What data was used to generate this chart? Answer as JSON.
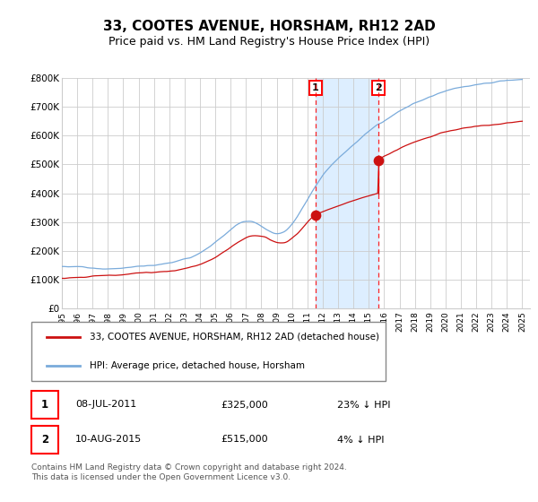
{
  "title": "33, COOTES AVENUE, HORSHAM, RH12 2AD",
  "subtitle": "Price paid vs. HM Land Registry's House Price Index (HPI)",
  "ylim": [
    0,
    800000
  ],
  "yticks": [
    0,
    100000,
    200000,
    300000,
    400000,
    500000,
    600000,
    700000,
    800000
  ],
  "ytick_labels": [
    "£0",
    "£100K",
    "£200K",
    "£300K",
    "£400K",
    "£500K",
    "£600K",
    "£700K",
    "£800K"
  ],
  "start_year": 1995,
  "end_year": 2025,
  "hpi_color": "#7aabdb",
  "price_color": "#cc1111",
  "bg_color": "#ffffff",
  "grid_color": "#cccccc",
  "sale1_year": 2011.52,
  "sale1_price": 325000,
  "sale2_year": 2015.61,
  "sale2_price": 515000,
  "sale1_label": "08-JUL-2011",
  "sale2_label": "10-AUG-2015",
  "sale1_pct": "23% ↓ HPI",
  "sale2_pct": "4% ↓ HPI",
  "legend1": "33, COOTES AVENUE, HORSHAM, RH12 2AD (detached house)",
  "legend2": "HPI: Average price, detached house, Horsham",
  "footer": "Contains HM Land Registry data © Crown copyright and database right 2024.\nThis data is licensed under the Open Government Licence v3.0.",
  "highlight_color": "#ddeeff",
  "title_fontsize": 11,
  "subtitle_fontsize": 9
}
